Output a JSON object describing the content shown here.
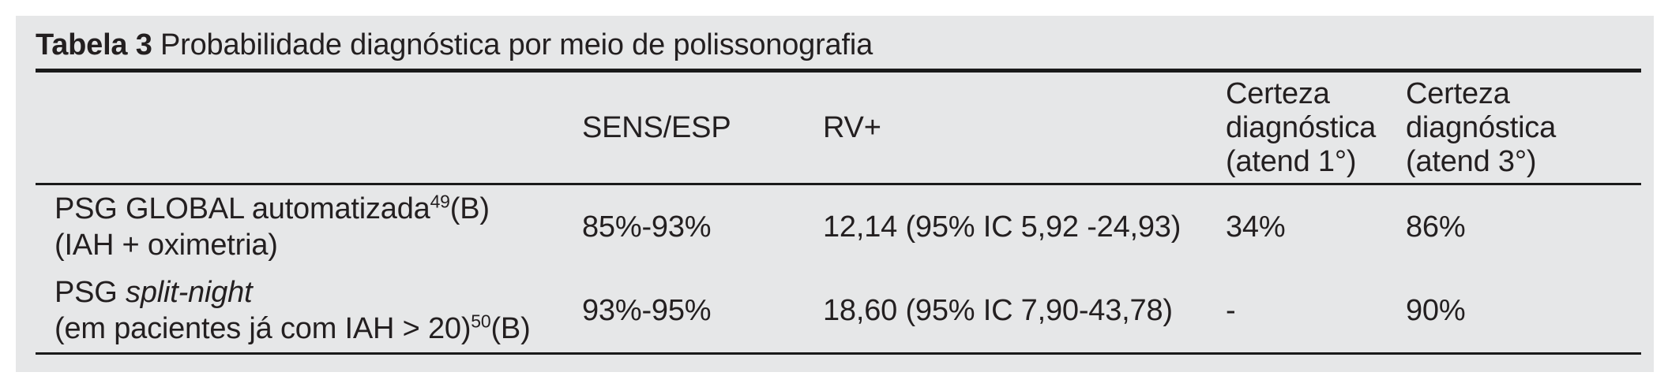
{
  "colors": {
    "panel_background": "#e6e7e8",
    "text": "#231f20",
    "rule": "#1a1a1a"
  },
  "caption": {
    "label": "Tabela 3",
    "text": " Probabilidade diagnóstica por meio de polissonografia"
  },
  "columns": [
    {
      "label": ""
    },
    {
      "label": "SENS/ESP"
    },
    {
      "label": "RV+"
    },
    {
      "label": "Certeza\ndiagnóstica\n(atend 1°)"
    },
    {
      "label": "Certeza\ndiagnóstica\n(atend 3°)"
    }
  ],
  "rows": [
    {
      "label_main": "PSG GLOBAL automatizada",
      "label_ref": "49",
      "label_grade": "(B)",
      "label_line2": "(IAH + oximetria)",
      "sens_esp": "85%-93%",
      "rv_plus": "12,14 (95% IC 5,92 -24,93)",
      "certeza_atend1": "34%",
      "certeza_atend3": "86%"
    },
    {
      "label_prefix": "PSG ",
      "label_italic": "split-night",
      "label_line2": "(em pacientes já com IAH > 20)",
      "label_ref": "50",
      "label_grade": "(B)",
      "sens_esp": "93%-95%",
      "rv_plus": "18,60 (95% IC 7,90-43,78)",
      "certeza_atend1": "-",
      "certeza_atend3": "90%"
    }
  ]
}
